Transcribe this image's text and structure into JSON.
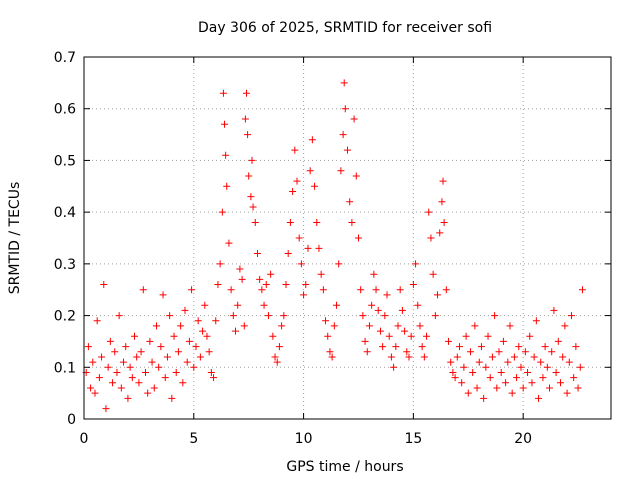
{
  "chart_data": {
    "type": "scatter",
    "title": "Day 306 of 2025, SRMTID for receiver sofi",
    "xlabel": "GPS time / hours",
    "ylabel": "SRMTID / TECUs",
    "xlim": [
      0,
      24
    ],
    "ylim": [
      0,
      0.7
    ],
    "xticks": [
      0,
      5,
      10,
      15,
      20
    ],
    "xtick_labels": [
      "0",
      "5",
      "10",
      "15",
      "20"
    ],
    "yticks": [
      0,
      0.1,
      0.2,
      0.3,
      0.4,
      0.5,
      0.6,
      0.7
    ],
    "ytick_labels": [
      "0",
      "0.1",
      "0.2",
      "0.3",
      "0.4",
      "0.5",
      "0.6",
      "0.7"
    ],
    "grid": true,
    "marker": "+",
    "series": [
      {
        "name": "SRMTID",
        "color": "#ff0000",
        "points": [
          [
            0.1,
            0.09
          ],
          [
            0.2,
            0.14
          ],
          [
            0.3,
            0.06
          ],
          [
            0.4,
            0.11
          ],
          [
            0.5,
            0.05
          ],
          [
            0.6,
            0.19
          ],
          [
            0.7,
            0.08
          ],
          [
            0.8,
            0.12
          ],
          [
            0.9,
            0.26
          ],
          [
            1.0,
            0.02
          ],
          [
            1.1,
            0.1
          ],
          [
            1.2,
            0.15
          ],
          [
            1.3,
            0.07
          ],
          [
            1.4,
            0.13
          ],
          [
            1.5,
            0.09
          ],
          [
            1.6,
            0.2
          ],
          [
            1.7,
            0.06
          ],
          [
            1.8,
            0.11
          ],
          [
            1.9,
            0.14
          ],
          [
            2.0,
            0.04
          ],
          [
            2.1,
            0.1
          ],
          [
            2.2,
            0.08
          ],
          [
            2.3,
            0.16
          ],
          [
            2.4,
            0.12
          ],
          [
            2.5,
            0.07
          ],
          [
            2.6,
            0.13
          ],
          [
            2.7,
            0.25
          ],
          [
            2.8,
            0.09
          ],
          [
            2.9,
            0.05
          ],
          [
            3.0,
            0.15
          ],
          [
            3.1,
            0.11
          ],
          [
            3.2,
            0.06
          ],
          [
            3.3,
            0.18
          ],
          [
            3.4,
            0.1
          ],
          [
            3.5,
            0.14
          ],
          [
            3.6,
            0.24
          ],
          [
            3.7,
            0.08
          ],
          [
            3.8,
            0.12
          ],
          [
            3.9,
            0.2
          ],
          [
            4.0,
            0.04
          ],
          [
            4.1,
            0.16
          ],
          [
            4.2,
            0.09
          ],
          [
            4.3,
            0.13
          ],
          [
            4.4,
            0.18
          ],
          [
            4.5,
            0.07
          ],
          [
            4.6,
            0.21
          ],
          [
            4.7,
            0.11
          ],
          [
            4.8,
            0.15
          ],
          [
            4.9,
            0.25
          ],
          [
            5.0,
            0.1
          ],
          [
            5.1,
            0.14
          ],
          [
            5.2,
            0.19
          ],
          [
            5.3,
            0.12
          ],
          [
            5.4,
            0.17
          ],
          [
            5.5,
            0.22
          ],
          [
            5.6,
            0.16
          ],
          [
            5.7,
            0.13
          ],
          [
            5.8,
            0.09
          ],
          [
            5.9,
            0.08
          ],
          [
            6.0,
            0.19
          ],
          [
            6.1,
            0.26
          ],
          [
            6.2,
            0.3
          ],
          [
            6.3,
            0.4
          ],
          [
            6.35,
            0.63
          ],
          [
            6.4,
            0.57
          ],
          [
            6.45,
            0.51
          ],
          [
            6.5,
            0.45
          ],
          [
            6.6,
            0.34
          ],
          [
            6.7,
            0.25
          ],
          [
            6.8,
            0.2
          ],
          [
            6.9,
            0.17
          ],
          [
            7.0,
            0.22
          ],
          [
            7.1,
            0.29
          ],
          [
            7.2,
            0.27
          ],
          [
            7.3,
            0.18
          ],
          [
            7.35,
            0.58
          ],
          [
            7.4,
            0.63
          ],
          [
            7.45,
            0.55
          ],
          [
            7.5,
            0.47
          ],
          [
            7.6,
            0.43
          ],
          [
            7.65,
            0.5
          ],
          [
            7.7,
            0.41
          ],
          [
            7.8,
            0.38
          ],
          [
            7.9,
            0.32
          ],
          [
            8.0,
            0.27
          ],
          [
            8.1,
            0.25
          ],
          [
            8.2,
            0.22
          ],
          [
            8.3,
            0.26
          ],
          [
            8.4,
            0.2
          ],
          [
            8.5,
            0.28
          ],
          [
            8.6,
            0.16
          ],
          [
            8.7,
            0.12
          ],
          [
            8.8,
            0.11
          ],
          [
            8.9,
            0.14
          ],
          [
            9.0,
            0.18
          ],
          [
            9.1,
            0.2
          ],
          [
            9.2,
            0.26
          ],
          [
            9.3,
            0.32
          ],
          [
            9.4,
            0.38
          ],
          [
            9.5,
            0.44
          ],
          [
            9.6,
            0.52
          ],
          [
            9.7,
            0.46
          ],
          [
            9.8,
            0.35
          ],
          [
            9.9,
            0.3
          ],
          [
            10.0,
            0.24
          ],
          [
            10.1,
            0.26
          ],
          [
            10.2,
            0.33
          ],
          [
            10.3,
            0.48
          ],
          [
            10.4,
            0.54
          ],
          [
            10.5,
            0.45
          ],
          [
            10.6,
            0.38
          ],
          [
            10.7,
            0.33
          ],
          [
            10.8,
            0.28
          ],
          [
            10.9,
            0.25
          ],
          [
            11.0,
            0.19
          ],
          [
            11.1,
            0.16
          ],
          [
            11.2,
            0.13
          ],
          [
            11.3,
            0.12
          ],
          [
            11.4,
            0.18
          ],
          [
            11.5,
            0.22
          ],
          [
            11.6,
            0.3
          ],
          [
            11.7,
            0.48
          ],
          [
            11.8,
            0.55
          ],
          [
            11.85,
            0.65
          ],
          [
            11.9,
            0.6
          ],
          [
            12.0,
            0.52
          ],
          [
            12.1,
            0.42
          ],
          [
            12.2,
            0.38
          ],
          [
            12.3,
            0.58
          ],
          [
            12.4,
            0.47
          ],
          [
            12.5,
            0.35
          ],
          [
            12.6,
            0.25
          ],
          [
            12.7,
            0.2
          ],
          [
            12.8,
            0.15
          ],
          [
            12.9,
            0.13
          ],
          [
            13.0,
            0.18
          ],
          [
            13.1,
            0.22
          ],
          [
            13.2,
            0.28
          ],
          [
            13.3,
            0.25
          ],
          [
            13.4,
            0.21
          ],
          [
            13.5,
            0.17
          ],
          [
            13.6,
            0.14
          ],
          [
            13.7,
            0.2
          ],
          [
            13.8,
            0.24
          ],
          [
            13.9,
            0.16
          ],
          [
            14.0,
            0.12
          ],
          [
            14.1,
            0.1
          ],
          [
            14.2,
            0.14
          ],
          [
            14.3,
            0.18
          ],
          [
            14.4,
            0.25
          ],
          [
            14.5,
            0.21
          ],
          [
            14.6,
            0.17
          ],
          [
            14.7,
            0.13
          ],
          [
            14.8,
            0.12
          ],
          [
            14.9,
            0.16
          ],
          [
            15.0,
            0.26
          ],
          [
            15.1,
            0.3
          ],
          [
            15.2,
            0.22
          ],
          [
            15.3,
            0.18
          ],
          [
            15.4,
            0.14
          ],
          [
            15.5,
            0.12
          ],
          [
            15.6,
            0.16
          ],
          [
            15.7,
            0.4
          ],
          [
            15.8,
            0.35
          ],
          [
            15.9,
            0.28
          ],
          [
            16.0,
            0.2
          ],
          [
            16.1,
            0.24
          ],
          [
            16.2,
            0.36
          ],
          [
            16.3,
            0.42
          ],
          [
            16.35,
            0.46
          ],
          [
            16.4,
            0.38
          ],
          [
            16.5,
            0.25
          ],
          [
            16.6,
            0.15
          ],
          [
            16.7,
            0.11
          ],
          [
            16.8,
            0.09
          ],
          [
            16.9,
            0.08
          ],
          [
            17.0,
            0.12
          ],
          [
            17.1,
            0.14
          ],
          [
            17.2,
            0.07
          ],
          [
            17.3,
            0.1
          ],
          [
            17.4,
            0.16
          ],
          [
            17.5,
            0.05
          ],
          [
            17.6,
            0.13
          ],
          [
            17.7,
            0.09
          ],
          [
            17.8,
            0.18
          ],
          [
            17.9,
            0.06
          ],
          [
            18.0,
            0.11
          ],
          [
            18.1,
            0.14
          ],
          [
            18.2,
            0.04
          ],
          [
            18.3,
            0.1
          ],
          [
            18.4,
            0.16
          ],
          [
            18.5,
            0.08
          ],
          [
            18.6,
            0.12
          ],
          [
            18.7,
            0.2
          ],
          [
            18.8,
            0.06
          ],
          [
            18.9,
            0.13
          ],
          [
            19.0,
            0.09
          ],
          [
            19.1,
            0.15
          ],
          [
            19.2,
            0.07
          ],
          [
            19.3,
            0.11
          ],
          [
            19.4,
            0.18
          ],
          [
            19.5,
            0.05
          ],
          [
            19.6,
            0.12
          ],
          [
            19.7,
            0.08
          ],
          [
            19.8,
            0.14
          ],
          [
            19.9,
            0.1
          ],
          [
            20.0,
            0.06
          ],
          [
            20.1,
            0.13
          ],
          [
            20.2,
            0.09
          ],
          [
            20.3,
            0.16
          ],
          [
            20.4,
            0.07
          ],
          [
            20.5,
            0.12
          ],
          [
            20.6,
            0.19
          ],
          [
            20.7,
            0.04
          ],
          [
            20.8,
            0.11
          ],
          [
            20.9,
            0.08
          ],
          [
            21.0,
            0.14
          ],
          [
            21.1,
            0.1
          ],
          [
            21.2,
            0.06
          ],
          [
            21.3,
            0.13
          ],
          [
            21.4,
            0.21
          ],
          [
            21.5,
            0.09
          ],
          [
            21.6,
            0.15
          ],
          [
            21.7,
            0.07
          ],
          [
            21.8,
            0.12
          ],
          [
            21.9,
            0.18
          ],
          [
            22.0,
            0.05
          ],
          [
            22.1,
            0.11
          ],
          [
            22.2,
            0.2
          ],
          [
            22.3,
            0.08
          ],
          [
            22.4,
            0.14
          ],
          [
            22.5,
            0.06
          ],
          [
            22.6,
            0.1
          ],
          [
            22.7,
            0.25
          ]
        ]
      }
    ]
  }
}
